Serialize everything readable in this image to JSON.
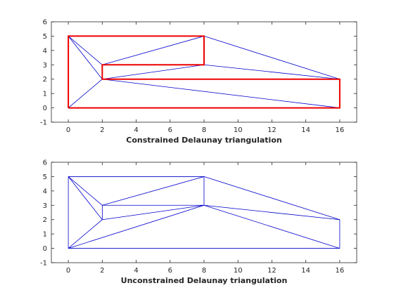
{
  "chart_data": [
    {
      "type": "line",
      "xlabel": "Constrained Delaunay triangulation",
      "xlim": [
        -1,
        17
      ],
      "ylim": [
        -1,
        6
      ],
      "xticks": [
        "0",
        "2",
        "4",
        "6",
        "8",
        "10",
        "12",
        "14",
        "16"
      ],
      "yticks": [
        "-1",
        "0",
        "1",
        "2",
        "3",
        "4",
        "5",
        "6"
      ],
      "grid": false,
      "colors": {
        "mesh": "#0000cc",
        "constraints": "#ee0000"
      },
      "series": [
        {
          "role": "mesh-edges",
          "segments": [
            [
              [
                0,
                5
              ],
              [
                8,
                5
              ]
            ],
            [
              [
                0,
                5
              ],
              [
                0,
                0
              ]
            ],
            [
              [
                0,
                5
              ],
              [
                2,
                3
              ]
            ],
            [
              [
                0,
                5
              ],
              [
                2,
                2
              ]
            ],
            [
              [
                0,
                0
              ],
              [
                2,
                2
              ]
            ],
            [
              [
                0,
                0
              ],
              [
                16,
                0
              ]
            ],
            [
              [
                2,
                3
              ],
              [
                8,
                5
              ]
            ],
            [
              [
                2,
                3
              ],
              [
                8,
                3
              ]
            ],
            [
              [
                2,
                3
              ],
              [
                2,
                2
              ]
            ],
            [
              [
                2,
                2
              ],
              [
                8,
                3
              ]
            ],
            [
              [
                2,
                2
              ],
              [
                16,
                2
              ]
            ],
            [
              [
                2,
                2
              ],
              [
                16,
                0
              ]
            ],
            [
              [
                8,
                5
              ],
              [
                8,
                3
              ]
            ],
            [
              [
                8,
                5
              ],
              [
                16,
                2
              ]
            ],
            [
              [
                8,
                3
              ],
              [
                16,
                2
              ]
            ],
            [
              [
                16,
                2
              ],
              [
                16,
                0
              ]
            ]
          ]
        },
        {
          "role": "constraint-edges",
          "polylines": [
            [
              [
                0,
                0
              ],
              [
                0,
                5
              ],
              [
                8,
                5
              ],
              [
                8,
                3
              ],
              [
                2,
                3
              ],
              [
                2,
                2
              ],
              [
                16,
                2
              ],
              [
                16,
                0
              ],
              [
                0,
                0
              ]
            ]
          ]
        }
      ]
    },
    {
      "type": "line",
      "xlabel": "Unconstrained Delaunay triangulation",
      "xlim": [
        -1,
        17
      ],
      "ylim": [
        -1,
        6
      ],
      "xticks": [
        "0",
        "2",
        "4",
        "6",
        "8",
        "10",
        "12",
        "14",
        "16"
      ],
      "yticks": [
        "-1",
        "0",
        "1",
        "2",
        "3",
        "4",
        "5",
        "6"
      ],
      "grid": false,
      "colors": {
        "mesh": "#0000cc"
      },
      "series": [
        {
          "role": "mesh-edges",
          "segments": [
            [
              [
                0,
                5
              ],
              [
                8,
                5
              ]
            ],
            [
              [
                0,
                5
              ],
              [
                0,
                0
              ]
            ],
            [
              [
                0,
                5
              ],
              [
                2,
                3
              ]
            ],
            [
              [
                0,
                5
              ],
              [
                2,
                2
              ]
            ],
            [
              [
                0,
                0
              ],
              [
                2,
                2
              ]
            ],
            [
              [
                0,
                0
              ],
              [
                8,
                3
              ]
            ],
            [
              [
                0,
                0
              ],
              [
                16,
                0
              ]
            ],
            [
              [
                2,
                3
              ],
              [
                8,
                5
              ]
            ],
            [
              [
                2,
                3
              ],
              [
                8,
                3
              ]
            ],
            [
              [
                2,
                3
              ],
              [
                2,
                2
              ]
            ],
            [
              [
                2,
                2
              ],
              [
                8,
                3
              ]
            ],
            [
              [
                8,
                5
              ],
              [
                8,
                3
              ]
            ],
            [
              [
                8,
                5
              ],
              [
                16,
                2
              ]
            ],
            [
              [
                8,
                3
              ],
              [
                16,
                2
              ]
            ],
            [
              [
                8,
                3
              ],
              [
                16,
                0
              ]
            ],
            [
              [
                16,
                2
              ],
              [
                16,
                0
              ]
            ]
          ]
        }
      ]
    }
  ]
}
